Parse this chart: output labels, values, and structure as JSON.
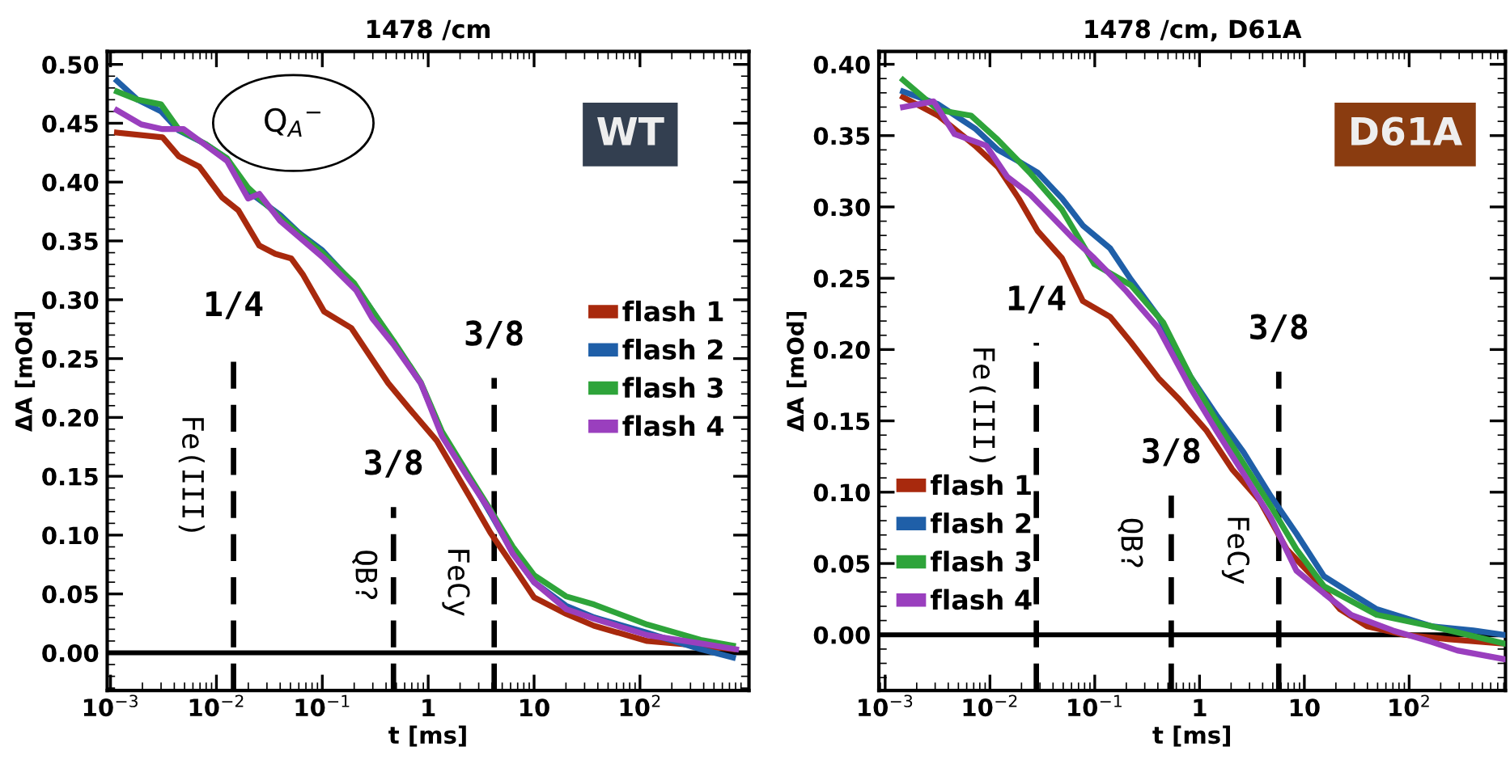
{
  "chart_data": [
    {
      "type": "line",
      "title": "1478 /cm",
      "xlabel": "t [ms]",
      "ylabel": "ΔA [mOd]",
      "log": "x",
      "legend": "right",
      "grid": false,
      "marker": "none",
      "line_style": "solid",
      "xlim": [
        0.00093,
        1070
      ],
      "xticks": [
        {
          "value": 0.001,
          "label": "10$^{−3}$"
        },
        {
          "value": 0.01,
          "label": "10$^{−2}$"
        },
        {
          "value": 0.1,
          "label": "10$^{−1}$"
        },
        1,
        10,
        {
          "value": 100,
          "label": "10$^{2}$"
        }
      ],
      "ylim": [
        -0.032,
        0.511
      ],
      "yticks": [
        {
          "value": 0,
          "label": "0.00"
        },
        {
          "value": 0.05,
          "label": "0.05"
        },
        {
          "value": 0.1,
          "label": "0.10"
        },
        {
          "value": 0.15,
          "label": "0.15"
        },
        {
          "value": 0.2,
          "label": "0.20"
        },
        {
          "value": 0.25,
          "label": "0.25"
        },
        {
          "value": 0.3,
          "label": "0.30"
        },
        {
          "value": 0.35,
          "label": "0.35"
        },
        {
          "value": 0.4,
          "label": "0.40"
        },
        {
          "value": 0.45,
          "label": "0.45"
        },
        {
          "value": 0.5,
          "label": "0.50"
        }
      ],
      "series": [
        {
          "name": "flash 1",
          "color": "#a8290d",
          "x": [
            0.00115,
            0.0031,
            0.0044,
            0.0069,
            0.0113,
            0.0161,
            0.0254,
            0.036,
            0.051,
            0.066,
            0.104,
            0.188,
            0.33,
            0.42,
            0.67,
            1.21,
            2.45,
            3.87,
            6.3,
            10,
            20.2,
            36.7,
            117,
            374,
            755
          ],
          "values": [
            0.442,
            0.438,
            0.422,
            0.413,
            0.387,
            0.376,
            0.346,
            0.339,
            0.335,
            0.321,
            0.29,
            0.276,
            0.243,
            0.229,
            0.207,
            0.18,
            0.133,
            0.102,
            0.074,
            0.047,
            0.033,
            0.023,
            0.01,
            0.006,
            0.003
          ]
        },
        {
          "name": "flash 2",
          "color": "#1f5fa8",
          "x": [
            0.00115,
            0.0018,
            0.003,
            0.0044,
            0.008,
            0.0126,
            0.02,
            0.04,
            0.06,
            0.1,
            0.2,
            0.3,
            0.47,
            0.85,
            1.35,
            2.45,
            3.9,
            6.3,
            10,
            20,
            37,
            117,
            374,
            755
          ],
          "values": [
            0.486,
            0.47,
            0.46,
            0.444,
            0.432,
            0.42,
            0.392,
            0.372,
            0.357,
            0.342,
            0.313,
            0.29,
            0.264,
            0.229,
            0.187,
            0.149,
            0.118,
            0.085,
            0.06,
            0.04,
            0.03,
            0.017,
            0.003,
            -0.004
          ]
        },
        {
          "name": "flash 3",
          "color": "#2ea43a",
          "x": [
            0.00115,
            0.0018,
            0.003,
            0.0044,
            0.008,
            0.0126,
            0.02,
            0.04,
            0.06,
            0.1,
            0.2,
            0.3,
            0.47,
            0.85,
            1.35,
            2.45,
            3.9,
            6.3,
            10,
            20,
            37,
            117,
            374,
            755
          ],
          "values": [
            0.477,
            0.47,
            0.466,
            0.445,
            0.432,
            0.42,
            0.395,
            0.37,
            0.356,
            0.34,
            0.314,
            0.29,
            0.265,
            0.23,
            0.188,
            0.15,
            0.121,
            0.09,
            0.066,
            0.048,
            0.041,
            0.024,
            0.011,
            0.006
          ]
        },
        {
          "name": "flash 4",
          "color": "#9a3fbe",
          "x": [
            0.00115,
            0.00195,
            0.0031,
            0.0049,
            0.008,
            0.0126,
            0.0199,
            0.0254,
            0.04,
            0.061,
            0.104,
            0.209,
            0.297,
            0.47,
            0.853,
            1.35,
            2.45,
            3.87,
            6.3,
            10,
            20.2,
            36.7,
            117,
            374,
            809
          ],
          "values": [
            0.461,
            0.449,
            0.445,
            0.445,
            0.431,
            0.418,
            0.386,
            0.39,
            0.367,
            0.353,
            0.335,
            0.308,
            0.284,
            0.262,
            0.229,
            0.184,
            0.147,
            0.12,
            0.084,
            0.06,
            0.037,
            0.029,
            0.015,
            0.008,
            0.003
          ]
        }
      ],
      "ref_lines": [
        {
          "axis": "y",
          "value": 0,
          "color": "#000000",
          "line_style": "solid"
        },
        {
          "axis": "x",
          "value": 0.0145,
          "color": "#000000",
          "line_style": "dashed"
        },
        {
          "axis": "x",
          "value": 0.47,
          "color": "#000000",
          "line_style": "dashed"
        },
        {
          "axis": "x",
          "value": 4.2,
          "color": "#000000",
          "line_style": "dashed"
        }
      ],
      "annotations": [
        "Fe(III)",
        "QB?",
        "FeCy",
        "Q$_{A}$$^{−}$",
        "WT",
        "1/4",
        "3/8",
        "3/8"
      ]
    },
    {
      "type": "line",
      "title": "1478 /cm, D61A",
      "xlabel": "t [ms]",
      "ylabel": "ΔA [mOd]",
      "log": "x",
      "legend": "bottom left",
      "grid": false,
      "marker": "none",
      "line_style": "solid",
      "xlim": [
        0.00087,
        830
      ],
      "xticks": [
        {
          "value": 0.001,
          "label": "10$^{−3}$"
        },
        {
          "value": 0.01,
          "label": "10$^{−2}$"
        },
        {
          "value": 0.1,
          "label": "10$^{−1}$"
        },
        1,
        10,
        {
          "value": 100,
          "label": "10$^{2}$"
        }
      ],
      "ylim": [
        -0.039,
        0.409
      ],
      "yticks": [
        {
          "value": 0,
          "label": "0.00"
        },
        {
          "value": 0.05,
          "label": "0.05"
        },
        {
          "value": 0.1,
          "label": "0.10"
        },
        {
          "value": 0.15,
          "label": "0.15"
        },
        {
          "value": 0.2,
          "label": "0.20"
        },
        {
          "value": 0.25,
          "label": "0.25"
        },
        {
          "value": 0.3,
          "label": "0.30"
        },
        {
          "value": 0.35,
          "label": "0.35"
        },
        {
          "value": 0.4,
          "label": "0.40"
        }
      ],
      "series": [
        {
          "name": "flash 1",
          "color": "#a8290d",
          "x": [
            0.00148,
            0.0032,
            0.0072,
            0.0119,
            0.0188,
            0.0286,
            0.0487,
            0.077,
            0.14,
            0.222,
            0.405,
            0.641,
            1.17,
            2.05,
            3.75,
            6.8,
            12,
            21.8,
            39.7,
            90,
            233,
            748
          ],
          "values": [
            0.377,
            0.364,
            0.343,
            0.328,
            0.306,
            0.283,
            0.264,
            0.234,
            0.223,
            0.205,
            0.18,
            0.165,
            0.143,
            0.116,
            0.094,
            0.06,
            0.041,
            0.018,
            0.006,
            0.0,
            -0.003,
            -0.006
          ]
        },
        {
          "name": "flash 2",
          "color": "#1f5fa8",
          "x": [
            0.00148,
            0.0032,
            0.0072,
            0.0119,
            0.0188,
            0.0286,
            0.0487,
            0.077,
            0.14,
            0.222,
            0.405,
            0.82,
            1.45,
            2.63,
            4.8,
            8.4,
            15.4,
            28,
            49,
            164,
            410,
            800
          ],
          "values": [
            0.381,
            0.372,
            0.355,
            0.34,
            0.332,
            0.324,
            0.306,
            0.287,
            0.271,
            0.249,
            0.223,
            0.181,
            0.154,
            0.128,
            0.097,
            0.071,
            0.041,
            0.029,
            0.018,
            0.006,
            0.003,
            0.0
          ]
        },
        {
          "name": "flash 3",
          "color": "#2ea43a",
          "x": [
            0.00148,
            0.0032,
            0.0066,
            0.0119,
            0.024,
            0.0487,
            0.099,
            0.222,
            0.45,
            0.82,
            1.45,
            2.63,
            4.8,
            8.4,
            15.4,
            49,
            164,
            800
          ],
          "values": [
            0.389,
            0.368,
            0.364,
            0.347,
            0.324,
            0.298,
            0.26,
            0.245,
            0.219,
            0.181,
            0.15,
            0.12,
            0.09,
            0.06,
            0.034,
            0.014,
            0.006,
            -0.006
          ]
        },
        {
          "name": "flash 4",
          "color": "#9a3fbe",
          "x": [
            0.00148,
            0.0029,
            0.0046,
            0.0092,
            0.0147,
            0.024,
            0.038,
            0.06,
            0.099,
            0.2,
            0.405,
            0.82,
            1.45,
            2.63,
            4.8,
            8.4,
            15.4,
            28,
            70,
            164,
            288,
            800
          ],
          "values": [
            0.37,
            0.374,
            0.351,
            0.343,
            0.321,
            0.309,
            0.294,
            0.279,
            0.264,
            0.241,
            0.215,
            0.173,
            0.143,
            0.113,
            0.082,
            0.045,
            0.029,
            0.014,
            0.003,
            -0.005,
            -0.011,
            -0.017
          ]
        }
      ],
      "ref_lines": [
        {
          "axis": "y",
          "value": 0,
          "color": "#000000",
          "line_style": "solid"
        },
        {
          "axis": "x",
          "value": 0.0277,
          "color": "#000000",
          "line_style": "dashed"
        },
        {
          "axis": "x",
          "value": 0.537,
          "color": "#000000",
          "line_style": "dashed"
        },
        {
          "axis": "x",
          "value": 5.7,
          "color": "#000000",
          "line_style": "dashed"
        }
      ],
      "annotations": [
        "Fe(III)",
        "QB?",
        "FeCy",
        "D61A",
        "1/4",
        "3/8",
        "3/8"
      ]
    }
  ]
}
